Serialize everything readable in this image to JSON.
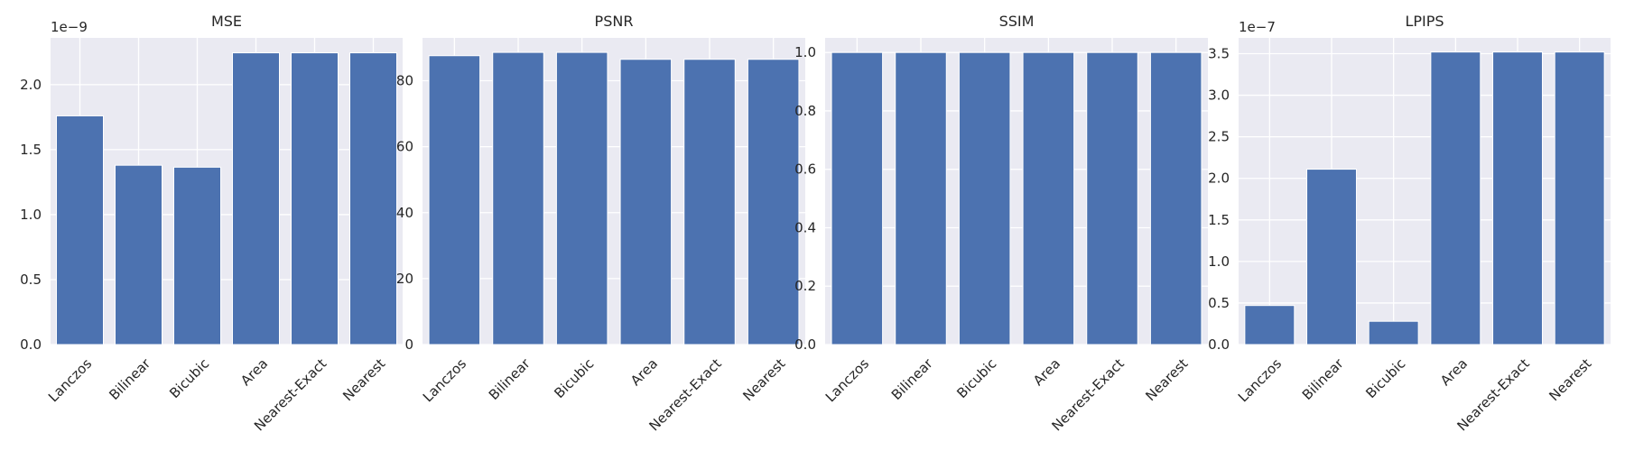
{
  "chart_data": [
    {
      "type": "bar",
      "title": "MSE",
      "xlabel": "",
      "ylabel": "",
      "categories": [
        "Lanczos",
        "Bilinear",
        "Bicubic",
        "Area",
        "Nearest-Exact",
        "Nearest"
      ],
      "values": [
        1.76e-09,
        1.38e-09,
        1.365e-09,
        2.245e-09,
        2.245e-09,
        2.245e-09
      ],
      "ylim": [
        0,
        2.36e-09
      ],
      "yticks": [
        0,
        5e-10,
        1e-09,
        1.5e-09,
        2e-09
      ],
      "ytick_labels": [
        "0.0",
        "0.5",
        "1.0",
        "1.5",
        "2.0"
      ],
      "offset_text": "1e−9",
      "grid": true
    },
    {
      "type": "bar",
      "title": "PSNR",
      "xlabel": "",
      "ylabel": "",
      "categories": [
        "Lanczos",
        "Bilinear",
        "Bicubic",
        "Area",
        "Nearest-Exact",
        "Nearest"
      ],
      "values": [
        87.6,
        88.6,
        88.6,
        86.5,
        86.5,
        86.5
      ],
      "ylim": [
        0,
        93
      ],
      "yticks": [
        0,
        20,
        40,
        60,
        80
      ],
      "ytick_labels": [
        "0",
        "20",
        "40",
        "60",
        "80"
      ],
      "offset_text": "",
      "grid": true
    },
    {
      "type": "bar",
      "title": "SSIM",
      "xlabel": "",
      "ylabel": "",
      "categories": [
        "Lanczos",
        "Bilinear",
        "Bicubic",
        "Area",
        "Nearest-Exact",
        "Nearest"
      ],
      "values": [
        1.0,
        1.0,
        1.0,
        1.0,
        1.0,
        1.0
      ],
      "ylim": [
        0,
        1.05
      ],
      "yticks": [
        0,
        0.2,
        0.4,
        0.6,
        0.8,
        1.0
      ],
      "ytick_labels": [
        "0.0",
        "0.2",
        "0.4",
        "0.6",
        "0.8",
        "1.0"
      ],
      "offset_text": "",
      "grid": true
    },
    {
      "type": "bar",
      "title": "LPIPS",
      "xlabel": "",
      "ylabel": "",
      "categories": [
        "Lanczos",
        "Bilinear",
        "Bicubic",
        "Area",
        "Nearest-Exact",
        "Nearest"
      ],
      "values": [
        4.7e-08,
        2.11e-07,
        2.8e-08,
        3.52e-07,
        3.52e-07,
        3.52e-07
      ],
      "ylim": [
        0,
        3.69e-07
      ],
      "yticks": [
        0,
        5e-08,
        1e-07,
        1.5e-07,
        2e-07,
        2.5e-07,
        3e-07,
        3.5e-07
      ],
      "ytick_labels": [
        "0.0",
        "0.5",
        "1.0",
        "1.5",
        "2.0",
        "2.5",
        "3.0",
        "3.5"
      ],
      "offset_text": "1e−7",
      "grid": true
    }
  ],
  "colors": {
    "bar": "#4c72b0",
    "axes_background": "#eaeaf2",
    "grid": "#ffffff",
    "text": "#262626"
  }
}
